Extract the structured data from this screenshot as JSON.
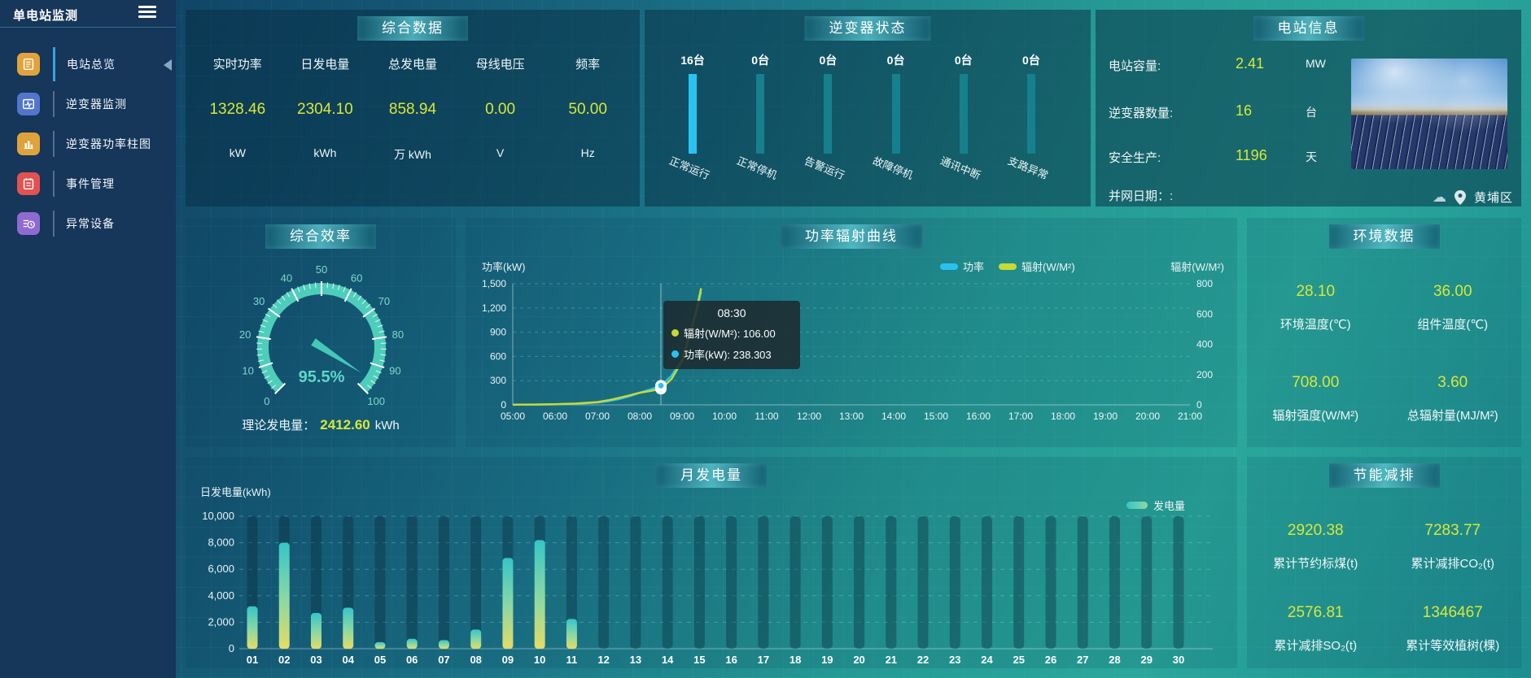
{
  "sidebar": {
    "title": "单电站监测",
    "items": [
      {
        "label": "电站总览",
        "icon": "document-overview-icon",
        "color": "#e2a23c",
        "active": true
      },
      {
        "label": "逆变器监测",
        "icon": "pulse-monitor-icon",
        "color": "#5276cc",
        "active": false
      },
      {
        "label": "逆变器功率柱图",
        "icon": "bar-chart-icon",
        "color": "#dfa33c",
        "active": false
      },
      {
        "label": "事件管理",
        "icon": "notebook-icon",
        "color": "#e25250",
        "active": false
      },
      {
        "label": "异常设备",
        "icon": "device-list-clock-icon",
        "color": "#8f6ad2",
        "active": false
      }
    ]
  },
  "icons": {
    "cloud": "☁"
  },
  "colors": {
    "accent_yellow": "#d7e837",
    "power_cyan": "#29c2f0",
    "radiation_yellow": "#c6d935",
    "bar_highlight": "#29c3f1",
    "bar_normal": "#17808d",
    "gauge_teal": "#4ecdbb"
  },
  "panels": {
    "summary": {
      "title": "综合数据",
      "metrics": [
        {
          "label": "实时功率",
          "value": "1328.46",
          "unit": "kW"
        },
        {
          "label": "日发电量",
          "value": "2304.10",
          "unit": "kWh"
        },
        {
          "label": "总发电量",
          "value": "858.94",
          "unit": "万 kWh"
        },
        {
          "label": "母线电压",
          "value": "0.00",
          "unit": "V"
        },
        {
          "label": "频率",
          "value": "50.00",
          "unit": "Hz"
        }
      ]
    },
    "inverter_status": {
      "title": "逆变器状态",
      "bars": [
        {
          "count": "16台",
          "label": "正常运行",
          "highlight": true
        },
        {
          "count": "0台",
          "label": "正常停机",
          "highlight": false
        },
        {
          "count": "0台",
          "label": "告警运行",
          "highlight": false
        },
        {
          "count": "0台",
          "label": "故障停机",
          "highlight": false
        },
        {
          "count": "0台",
          "label": "通讯中断",
          "highlight": false
        },
        {
          "count": "0台",
          "label": "支路异常",
          "highlight": false
        }
      ]
    },
    "station_info": {
      "title": "电站信息",
      "rows": [
        {
          "label": "电站容量:",
          "value": "2.41",
          "unit": "MW"
        },
        {
          "label": "逆变器数量:",
          "value": "16",
          "unit": "台"
        },
        {
          "label": "安全生产:",
          "value": "1196",
          "unit": "天"
        },
        {
          "label": "并网日期：:",
          "value": "",
          "unit": ""
        }
      ],
      "location": "黄埔区"
    },
    "efficiency": {
      "title": "综合效率",
      "gauge": {
        "value": 95.5,
        "display": "95.5%",
        "min": 0,
        "max": 100,
        "ticks": [
          0,
          10,
          20,
          30,
          40,
          50,
          60,
          70,
          80,
          90,
          100
        ]
      },
      "footer_label": "理论发电量：",
      "footer_value": "2412.60",
      "footer_unit": "kWh"
    },
    "environment": {
      "title": "环境数据",
      "metrics": [
        {
          "value": "28.10",
          "label": "环境温度(℃)"
        },
        {
          "value": "36.00",
          "label": "组件温度(℃)"
        },
        {
          "value": "708.00",
          "label": "辐射强度(W/M²)"
        },
        {
          "value": "3.60",
          "label": "总辐射量(MJ/M²)"
        }
      ]
    },
    "saving": {
      "title": "节能减排",
      "metrics": [
        {
          "value": "2920.38",
          "label": "累计节约标煤(t)"
        },
        {
          "value": "7283.77",
          "label": "累计减排CO₂(t)"
        },
        {
          "value": "2576.81",
          "label": "累计减排SO₂(t)"
        },
        {
          "value": "1346467",
          "label": "累计等效植树(棵)"
        }
      ]
    }
  },
  "chart_data": [
    {
      "id": "power_radiation_curve",
      "type": "line",
      "title": "功率辐射曲线",
      "x": [
        "05:00",
        "06:00",
        "07:00",
        "08:00",
        "09:00",
        "10:00",
        "11:00",
        "12:00",
        "13:00",
        "14:00",
        "15:00",
        "16:00",
        "17:00",
        "18:00",
        "19:00",
        "20:00",
        "21:00"
      ],
      "left_axis": {
        "name": "功率(kW)",
        "min": 0,
        "max": 1500,
        "ticks": [
          "0",
          "300",
          "600",
          "900",
          "1,200",
          "1,500"
        ]
      },
      "right_axis": {
        "name": "辐射(W/M²)",
        "min": 0,
        "max": 800,
        "ticks": [
          "0",
          "200",
          "400",
          "600",
          "800"
        ]
      },
      "series": [
        {
          "name": "功率",
          "color": "#29c2f0",
          "axis": "left",
          "points": [
            [
              5,
              2
            ],
            [
              5.5,
              3
            ],
            [
              6,
              6
            ],
            [
              6.5,
              14
            ],
            [
              7,
              30
            ],
            [
              7.25,
              45
            ],
            [
              7.5,
              70
            ],
            [
              7.75,
              105
            ],
            [
              8,
              150
            ],
            [
              8.25,
              190
            ],
            [
              8.5,
              238.303
            ],
            [
              8.75,
              360
            ],
            [
              9,
              560
            ],
            [
              9.2,
              900
            ],
            [
              9.35,
              1180
            ],
            [
              9.45,
              1400
            ]
          ]
        },
        {
          "name": "辐射(W/M²)",
          "color": "#c6d935",
          "axis": "right",
          "points": [
            [
              5,
              1
            ],
            [
              5.5,
              2
            ],
            [
              6,
              4
            ],
            [
              6.5,
              9
            ],
            [
              7,
              18
            ],
            [
              7.25,
              30
            ],
            [
              7.5,
              45
            ],
            [
              7.75,
              62
            ],
            [
              8,
              80
            ],
            [
              8.25,
              92
            ],
            [
              8.5,
              106
            ],
            [
              8.75,
              170
            ],
            [
              9,
              290
            ],
            [
              9.2,
              480
            ],
            [
              9.35,
              640
            ],
            [
              9.45,
              770
            ]
          ]
        }
      ],
      "marker_x": 8.5,
      "tooltip": {
        "time": "08:30",
        "lines": [
          {
            "dot": "#c6d935",
            "text": "辐射(W/M²): 106.00"
          },
          {
            "dot": "#29c2f0",
            "text": "功率(kW): 238.303"
          }
        ]
      }
    },
    {
      "id": "monthly_energy",
      "type": "bar",
      "title": "月发电量",
      "ylabel": "日发电量(kWh)",
      "legend": "发电量",
      "categories": [
        "01",
        "02",
        "03",
        "04",
        "05",
        "06",
        "07",
        "08",
        "09",
        "10",
        "11",
        "12",
        "13",
        "14",
        "15",
        "16",
        "17",
        "18",
        "19",
        "20",
        "21",
        "22",
        "23",
        "24",
        "25",
        "26",
        "27",
        "28",
        "29",
        "30"
      ],
      "values": [
        3200,
        8000,
        2700,
        3100,
        500,
        750,
        650,
        1450,
        6850,
        8200,
        2250,
        0,
        0,
        0,
        0,
        0,
        0,
        0,
        0,
        0,
        0,
        0,
        0,
        0,
        0,
        0,
        0,
        0,
        0,
        0
      ],
      "ylim": [
        0,
        10000
      ],
      "yticks": [
        "0",
        "2,000",
        "4,000",
        "6,000",
        "8,000",
        "10,000"
      ],
      "bar_gradient": [
        "#35c5c8",
        "#8fd8a2",
        "#e3dc64"
      ]
    }
  ]
}
